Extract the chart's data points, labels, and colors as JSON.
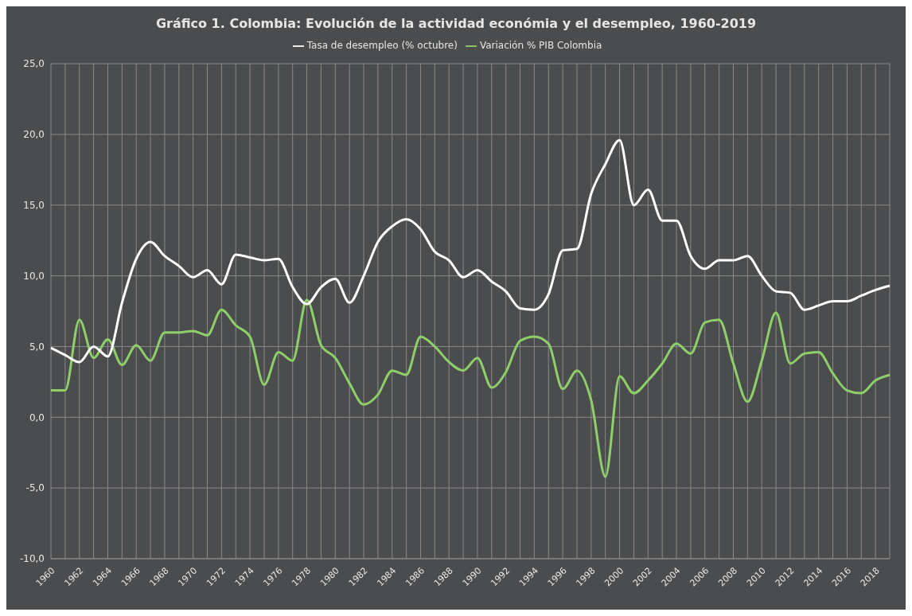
{
  "chart_data": {
    "type": "line",
    "title": "Gráfico 1. Colombia: Evolución de la actividad económia y el desempleo, 1960-2019",
    "categories": [
      "1960",
      null,
      "1962",
      null,
      "1964",
      null,
      "1966",
      null,
      "1968",
      null,
      "1970",
      null,
      "1972",
      null,
      "1974",
      null,
      "1976",
      null,
      "1978",
      null,
      "1980",
      null,
      "1982",
      null,
      "1984",
      null,
      "1986",
      null,
      "1988",
      null,
      "1990",
      null,
      "1992",
      null,
      "1994",
      null,
      "1996",
      null,
      "1998",
      null,
      "2000",
      null,
      "2002",
      null,
      "2004",
      null,
      "2006",
      null,
      "2008",
      null,
      "2010",
      null,
      "2012",
      null,
      "2014",
      null,
      "2016",
      null,
      "2018",
      null
    ],
    "series": [
      {
        "name": "Variación % PIB Colombia",
        "color": "#8fcf6a",
        "values": [
          1.9,
          1.9,
          6.9,
          4.2,
          5.5,
          3.7,
          5.1,
          4.0,
          6.0,
          6.0,
          6.1,
          5.8,
          7.6,
          6.5,
          5.7,
          2.3,
          4.6,
          4.0,
          8.3,
          5.1,
          4.2,
          2.4,
          0.9,
          1.6,
          3.3,
          3.0,
          5.7,
          5.0,
          3.9,
          3.3,
          4.2,
          2.1,
          3.2,
          5.4,
          5.7,
          5.2,
          2.0,
          3.3,
          1.2,
          -4.2,
          2.9,
          1.7,
          2.6,
          3.8,
          5.2,
          4.5,
          6.7,
          6.9,
          3.8,
          1.1,
          4.0,
          7.4,
          3.8,
          4.5,
          4.6,
          3.1,
          1.9,
          1.7,
          2.6,
          3.0
        ]
      },
      {
        "name": "Tasa de desempleo (% octubre)",
        "color": "#ffffff",
        "values": [
          4.9,
          4.4,
          3.9,
          5.0,
          4.3,
          8.1,
          11.2,
          12.4,
          11.4,
          10.7,
          9.9,
          10.4,
          9.4,
          11.5,
          11.3,
          11.1,
          11.2,
          9.2,
          8.0,
          9.2,
          9.8,
          8.1,
          10.0,
          12.4,
          13.5,
          14.0,
          13.3,
          11.7,
          11.1,
          9.9,
          10.4,
          9.6,
          8.9,
          7.7,
          7.6,
          8.7,
          11.8,
          11.9,
          15.8,
          17.9,
          19.6,
          15.0,
          16.1,
          13.9,
          13.9,
          11.4,
          10.5,
          11.1,
          11.1,
          11.4,
          10.0,
          8.9,
          8.8,
          7.6,
          7.9,
          8.2,
          8.2,
          8.6,
          9.0,
          9.3
        ]
      }
    ],
    "ylim": [
      -10,
      25
    ],
    "yticks": [
      {
        "value": -10,
        "label": "-10,0"
      },
      {
        "value": -5,
        "label": "-5,0"
      },
      {
        "value": 0,
        "label": "0,0"
      },
      {
        "value": 5,
        "label": "5,0"
      },
      {
        "value": 10,
        "label": "10,0"
      },
      {
        "value": 15,
        "label": "15,0"
      },
      {
        "value": 20,
        "label": "20,0"
      },
      {
        "value": 25,
        "label": "25,0"
      }
    ],
    "grid": true,
    "legend": "top",
    "marker": "none",
    "line_style": "solid"
  }
}
